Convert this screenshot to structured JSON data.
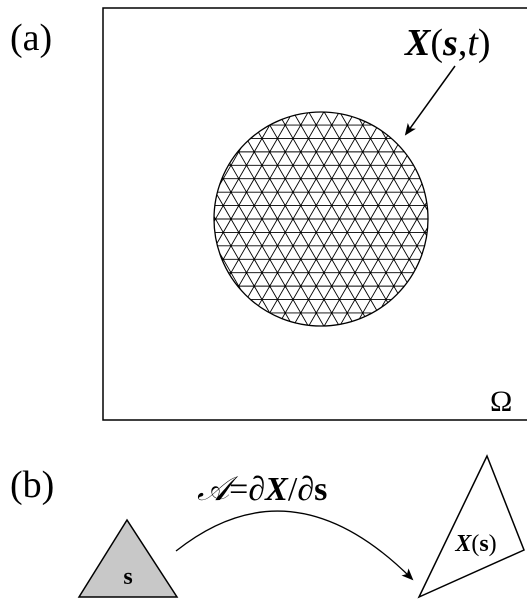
{
  "panel_a": {
    "label": "(a)",
    "mesh_label": "X(s,t)",
    "mesh_label_parts": {
      "x": "X",
      "open": "(",
      "s": "s",
      "comma": ",",
      "t": "t",
      "close": ")"
    },
    "domain_symbol": "Ω"
  },
  "panel_b": {
    "label": "(b)",
    "map_label": "𝒜=∂X/∂s",
    "map_parts": {
      "a": "𝒜",
      "eq": "=",
      "d1": "∂",
      "x": "X",
      "slash": "/",
      "d2": "∂",
      "s": "s"
    },
    "ref_triangle_label": "s",
    "def_triangle_label": "X(s)",
    "def_parts": {
      "x": "X",
      "open": "(",
      "s": "s",
      "close": ")"
    },
    "ref_triangle_fill": "#c8c8c8"
  }
}
